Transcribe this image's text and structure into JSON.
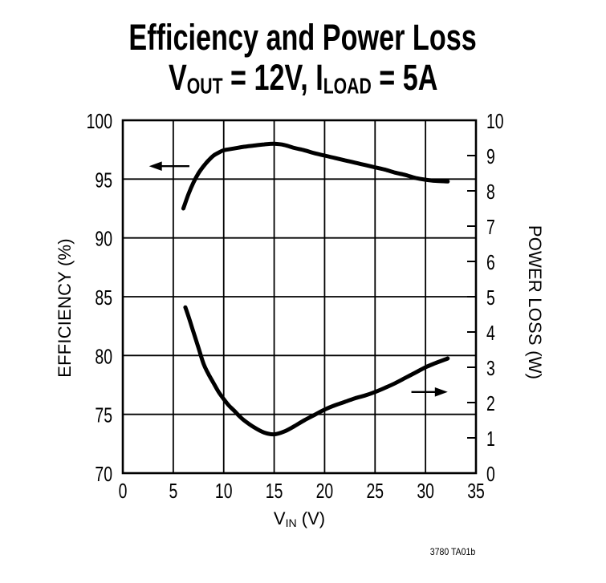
{
  "figure": {
    "footnote": "3780 TA01b",
    "ink_color": "#000000",
    "background_color": "#ffffff"
  },
  "chart_data": {
    "type": "line",
    "title": "Efficiency and Power Loss",
    "subtitle": "VOUT = 12V, ILOAD = 5A",
    "subtitle_parts": [
      {
        "text": "V"
      },
      {
        "sub": "OUT"
      },
      {
        "text": " = 12V, I"
      },
      {
        "sub": "LOAD"
      },
      {
        "text": " = 5A"
      }
    ],
    "x_axis": {
      "label": "VIN (V)",
      "label_parts": [
        {
          "text": "V"
        },
        {
          "sub": "IN"
        },
        {
          "text": " (V)"
        }
      ],
      "min": 0,
      "max": 35,
      "ticks": [
        0,
        5,
        10,
        15,
        20,
        25,
        30,
        35
      ],
      "gridlines": true
    },
    "y_left_axis": {
      "label": "EFFICIENCY (%)",
      "min": 70,
      "max": 100,
      "ticks": [
        100,
        95,
        90,
        85,
        80,
        75,
        70
      ],
      "gridlines": true
    },
    "y_right_axis": {
      "label": "POWER LOSS (W)",
      "min": 0,
      "max": 10,
      "ticks": [
        10,
        9,
        8,
        7,
        6,
        5,
        4,
        3,
        2,
        1,
        0
      ],
      "gridlines": false
    },
    "line_color": "#000000",
    "series": [
      {
        "name": "Efficiency",
        "axis": "left",
        "units": "%",
        "points": [
          [
            6,
            92.5
          ],
          [
            6.5,
            93.7
          ],
          [
            7,
            94.7
          ],
          [
            7.5,
            95.5
          ],
          [
            8,
            96.1
          ],
          [
            8.5,
            96.6
          ],
          [
            9,
            97.0
          ],
          [
            9.5,
            97.25
          ],
          [
            10,
            97.45
          ],
          [
            11,
            97.6
          ],
          [
            12,
            97.75
          ],
          [
            13,
            97.85
          ],
          [
            14,
            97.95
          ],
          [
            15,
            98.0
          ],
          [
            16,
            97.9
          ],
          [
            17,
            97.65
          ],
          [
            18,
            97.45
          ],
          [
            19,
            97.2
          ],
          [
            20,
            97.0
          ],
          [
            21,
            96.8
          ],
          [
            22,
            96.6
          ],
          [
            23,
            96.4
          ],
          [
            24,
            96.2
          ],
          [
            25,
            96.0
          ],
          [
            26,
            95.8
          ],
          [
            27,
            95.55
          ],
          [
            28,
            95.35
          ],
          [
            29,
            95.1
          ],
          [
            30,
            94.95
          ],
          [
            31,
            94.85
          ],
          [
            32.2,
            94.8
          ]
        ]
      },
      {
        "name": "Power Loss",
        "axis": "right",
        "units": "W",
        "points": [
          [
            6.2,
            4.7
          ],
          [
            6.5,
            4.45
          ],
          [
            7,
            4.0
          ],
          [
            7.5,
            3.55
          ],
          [
            8,
            3.1
          ],
          [
            8.5,
            2.8
          ],
          [
            9,
            2.55
          ],
          [
            9.5,
            2.3
          ],
          [
            10,
            2.1
          ],
          [
            10.5,
            1.92
          ],
          [
            11,
            1.78
          ],
          [
            11.5,
            1.63
          ],
          [
            12,
            1.5
          ],
          [
            13,
            1.3
          ],
          [
            14,
            1.15
          ],
          [
            15,
            1.1
          ],
          [
            16,
            1.18
          ],
          [
            17,
            1.33
          ],
          [
            18,
            1.5
          ],
          [
            19,
            1.65
          ],
          [
            20,
            1.8
          ],
          [
            21,
            1.92
          ],
          [
            22,
            2.02
          ],
          [
            23,
            2.12
          ],
          [
            24,
            2.2
          ],
          [
            25,
            2.3
          ],
          [
            26,
            2.42
          ],
          [
            27,
            2.55
          ],
          [
            28,
            2.7
          ],
          [
            29,
            2.85
          ],
          [
            30,
            3.0
          ],
          [
            31,
            3.12
          ],
          [
            32.2,
            3.25
          ]
        ]
      }
    ],
    "annotations": [
      {
        "type": "arrow",
        "series": "Efficiency",
        "direction": "left",
        "axis": "left",
        "x_tail": 6.6,
        "x_tip": 2.6,
        "y": 96.1
      },
      {
        "type": "arrow",
        "series": "Power Loss",
        "direction": "right",
        "axis": "right",
        "x_tail": 28.6,
        "x_tip": 32.2,
        "y": 2.3
      }
    ]
  }
}
